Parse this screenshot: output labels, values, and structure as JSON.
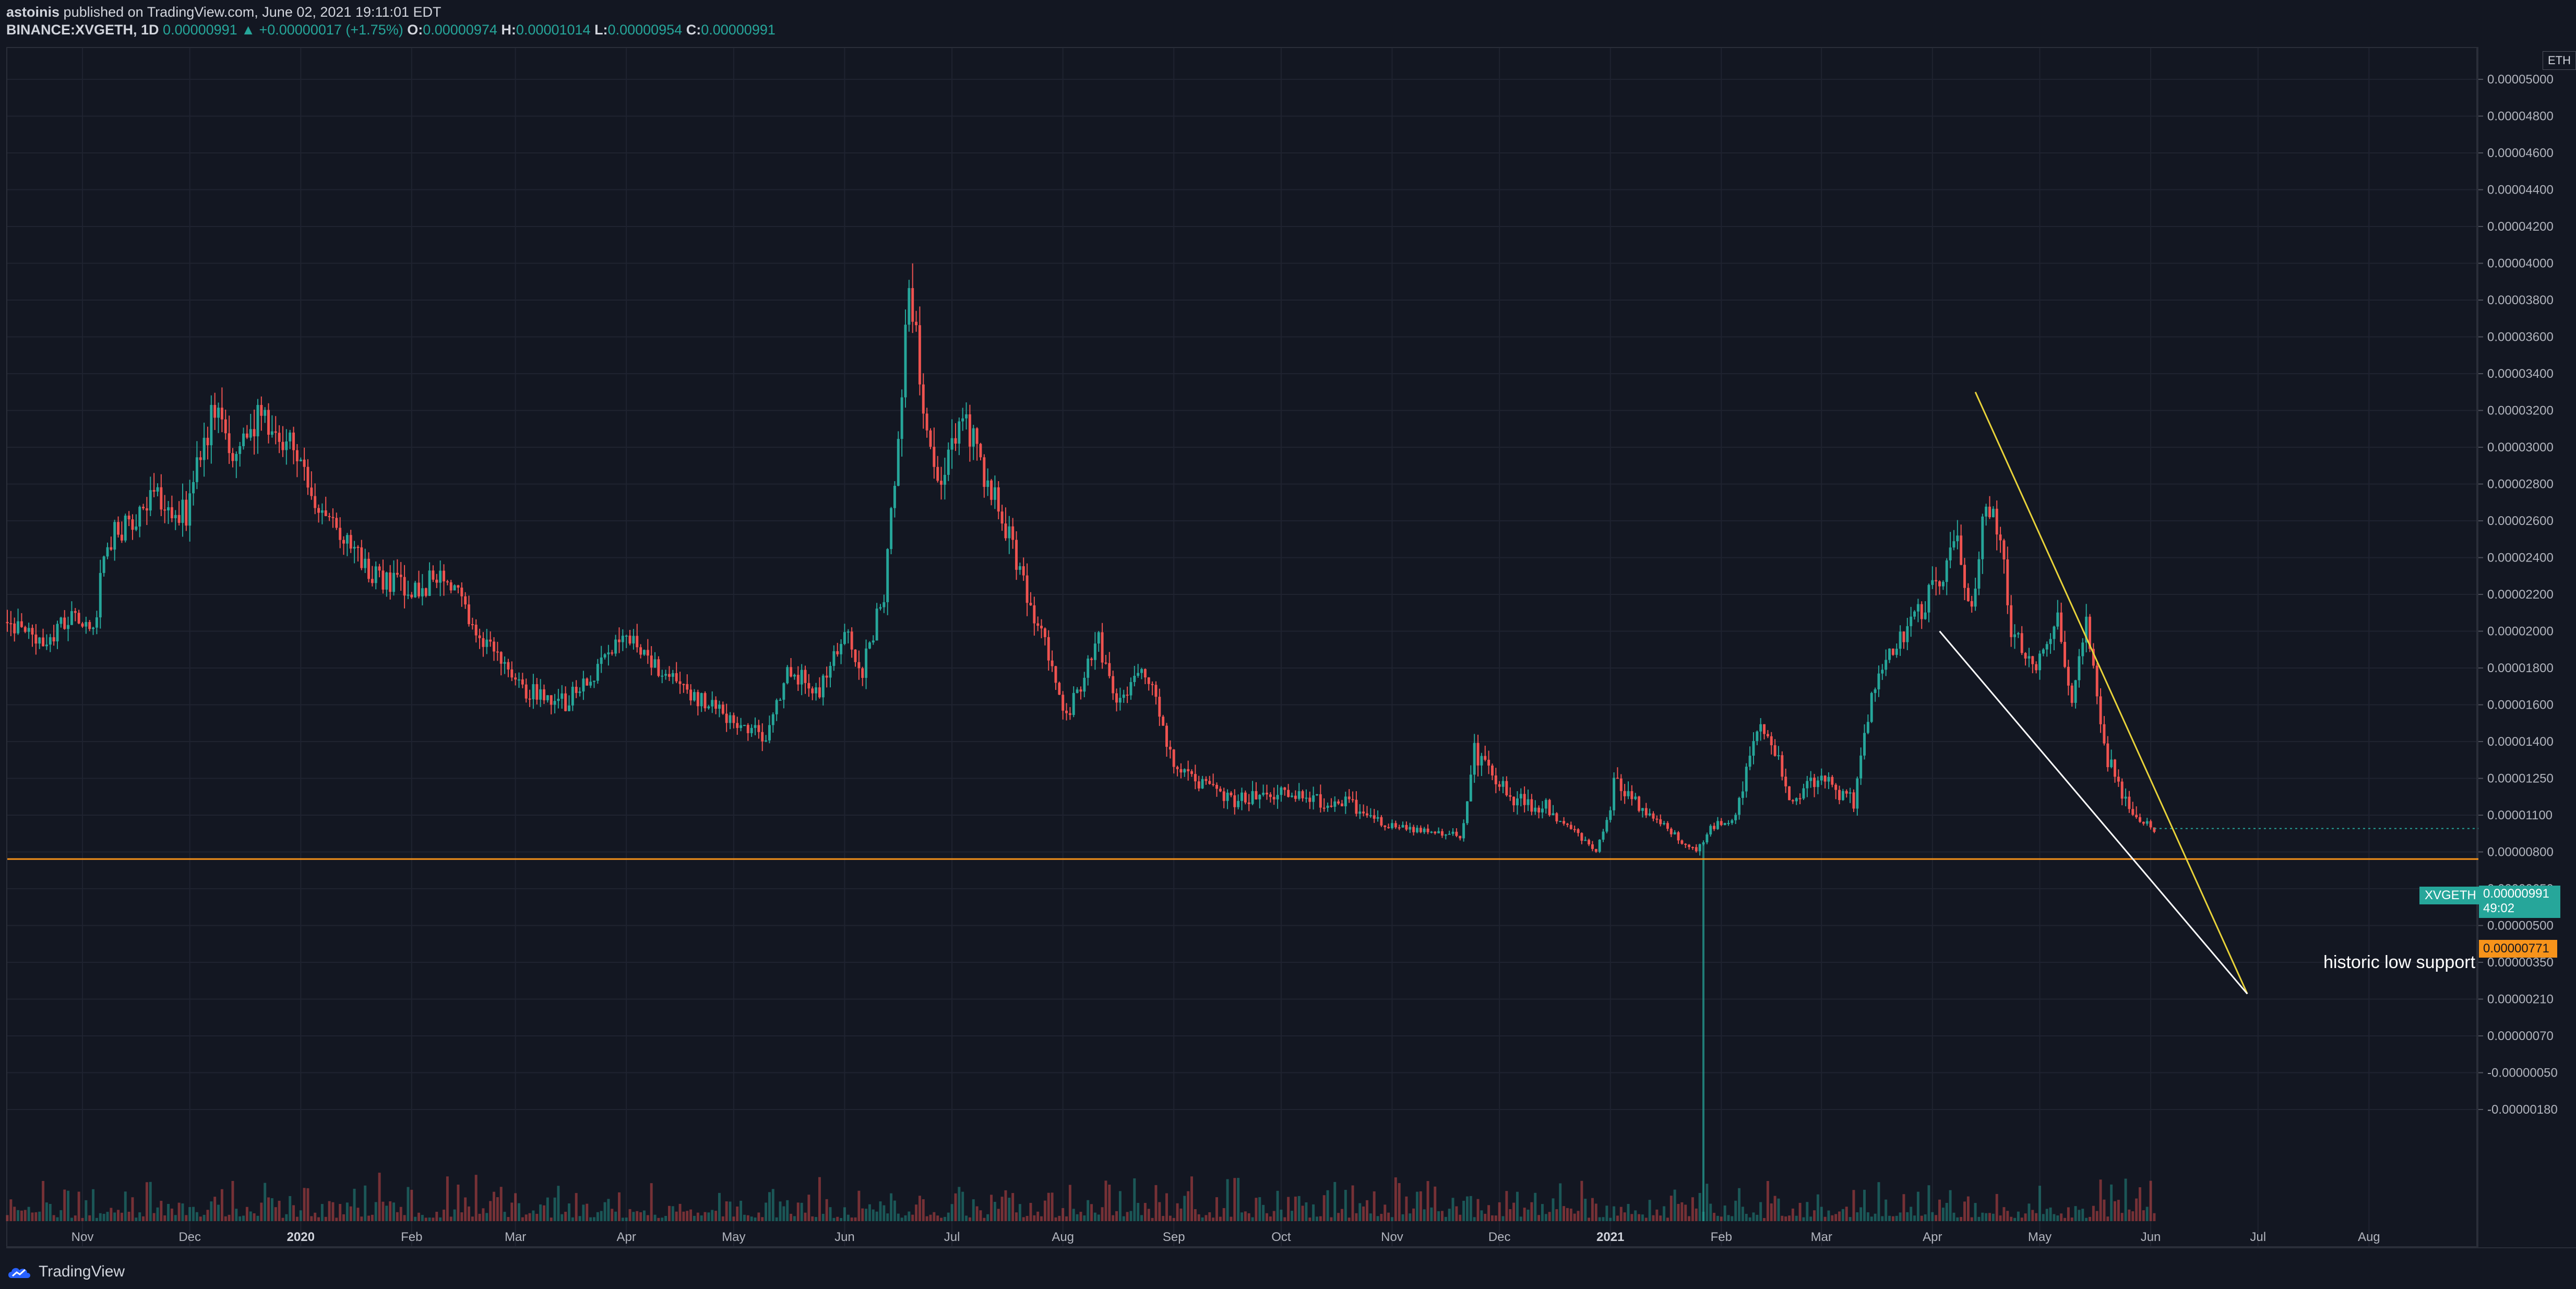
{
  "header": {
    "author": "astoinis",
    "published_text": "published on TradingView.com, June 02, 2021 19:11:01 EDT",
    "symbol": "BINANCE:XVGETH, 1D",
    "last": "0.00000991",
    "change": "+0.00000017 (+1.75%)",
    "o_label": "O:",
    "o_value": "0.00000974",
    "h_label": "H:",
    "h_value": "0.00001014",
    "l_label": "L:",
    "l_value": "0.00000954",
    "c_label": "C:",
    "c_value": "0.00000991"
  },
  "currency": "ETH",
  "price_tag": {
    "symbol": "XVGETH",
    "value": "0.00000991",
    "countdown": "49:02"
  },
  "support_tag": {
    "value": "0.00000771"
  },
  "annotation": "historic low support",
  "brand": "TradingView",
  "colors": {
    "up": "#26a69a",
    "down": "#ef5350",
    "support": "#f7931a",
    "trend_upper": "#e8d33a",
    "trend_lower": "#ffffff"
  },
  "chart_data": {
    "type": "candlestick",
    "y_tick_labels": [
      {
        "label": "0.00005000",
        "v": 5e-05
      },
      {
        "label": "0.00004800",
        "v": 4.8e-05
      },
      {
        "label": "0.00004600",
        "v": 4.6e-05
      },
      {
        "label": "0.00004400",
        "v": 4.4e-05
      },
      {
        "label": "0.00004200",
        "v": 4.2e-05
      },
      {
        "label": "0.00004000",
        "v": 4e-05
      },
      {
        "label": "0.00003800",
        "v": 3.8e-05
      },
      {
        "label": "0.00003600",
        "v": 3.6e-05
      },
      {
        "label": "0.00003400",
        "v": 3.4e-05
      },
      {
        "label": "0.00003200",
        "v": 3.2e-05
      },
      {
        "label": "0.00003000",
        "v": 3e-05
      },
      {
        "label": "0.00002800",
        "v": 2.8e-05
      },
      {
        "label": "0.00002600",
        "v": 2.6e-05
      },
      {
        "label": "0.00002400",
        "v": 2.4e-05
      },
      {
        "label": "0.00002200",
        "v": 2.2e-05
      },
      {
        "label": "0.00002000",
        "v": 2e-05
      },
      {
        "label": "0.00001800",
        "v": 1.8e-05
      },
      {
        "label": "0.00001600",
        "v": 1.6e-05
      },
      {
        "label": "0.00001400",
        "v": 1.4e-05
      },
      {
        "label": "0.00001250",
        "v": 1.25e-05
      },
      {
        "label": "0.00001100",
        "v": 1.1e-05
      },
      {
        "label": "0.00000800",
        "v": 8e-06
      },
      {
        "label": "0.00000650",
        "v": 6.5e-06
      },
      {
        "label": "0.00000500",
        "v": 5e-06
      },
      {
        "label": "0.00000350",
        "v": 3.5e-06
      },
      {
        "label": "0.00000210",
        "v": 2.1e-06
      },
      {
        "label": "0.00000070",
        "v": 7e-07
      },
      {
        "label": "-0.00000050",
        "v": -5e-07
      },
      {
        "label": "-0.00000180",
        "v": -1.8e-06
      }
    ],
    "x_tick_labels": [
      {
        "label": "Nov",
        "date": "2019-11-01",
        "year": false
      },
      {
        "label": "Dec",
        "date": "2019-12-01",
        "year": false
      },
      {
        "label": "2020",
        "date": "2020-01-01",
        "year": true
      },
      {
        "label": "Feb",
        "date": "2020-02-01",
        "year": false
      },
      {
        "label": "Mar",
        "date": "2020-03-01",
        "year": false
      },
      {
        "label": "Apr",
        "date": "2020-04-01",
        "year": false
      },
      {
        "label": "May",
        "date": "2020-05-01",
        "year": false
      },
      {
        "label": "Jun",
        "date": "2020-06-01",
        "year": false
      },
      {
        "label": "Jul",
        "date": "2020-07-01",
        "year": false
      },
      {
        "label": "Aug",
        "date": "2020-08-01",
        "year": false
      },
      {
        "label": "Sep",
        "date": "2020-09-01",
        "year": false
      },
      {
        "label": "Oct",
        "date": "2020-10-01",
        "year": false
      },
      {
        "label": "Nov",
        "date": "2020-11-01",
        "year": false
      },
      {
        "label": "Dec",
        "date": "2020-12-01",
        "year": false
      },
      {
        "label": "2021",
        "date": "2021-01-01",
        "year": true
      },
      {
        "label": "Feb",
        "date": "2021-02-01",
        "year": false
      },
      {
        "label": "Mar",
        "date": "2021-03-01",
        "year": false
      },
      {
        "label": "Apr",
        "date": "2021-04-01",
        "year": false
      },
      {
        "label": "May",
        "date": "2021-05-01",
        "year": false
      },
      {
        "label": "Jun",
        "date": "2021-06-01",
        "year": false
      },
      {
        "label": "Jul",
        "date": "2021-07-01",
        "year": false
      },
      {
        "label": "Aug",
        "date": "2021-08-01",
        "year": false
      }
    ],
    "x_range": [
      "2019-10-11",
      "2021-08-31"
    ],
    "last_bar_date": "2021-06-02",
    "close_path": [
      {
        "date": "2019-10-11",
        "close": 2.05e-05
      },
      {
        "date": "2019-10-20",
        "close": 1.93e-05
      },
      {
        "date": "2019-10-30",
        "close": 2.08e-05
      },
      {
        "date": "2019-11-04",
        "close": 1.97e-05
      },
      {
        "date": "2019-11-07",
        "close": 2.47e-05
      },
      {
        "date": "2019-11-12",
        "close": 2.56e-05
      },
      {
        "date": "2019-11-20",
        "close": 2.72e-05
      },
      {
        "date": "2019-11-30",
        "close": 2.65e-05
      },
      {
        "date": "2019-12-08",
        "close": 3.22e-05
      },
      {
        "date": "2019-12-14",
        "close": 2.92e-05
      },
      {
        "date": "2019-12-20",
        "close": 3.17e-05
      },
      {
        "date": "2019-12-31",
        "close": 2.96e-05
      },
      {
        "date": "2020-01-10",
        "close": 2.54e-05
      },
      {
        "date": "2020-01-20",
        "close": 2.33e-05
      },
      {
        "date": "2020-02-01",
        "close": 2.2e-05
      },
      {
        "date": "2020-02-10",
        "close": 2.33e-05
      },
      {
        "date": "2020-02-18",
        "close": 2.03e-05
      },
      {
        "date": "2020-03-01",
        "close": 1.7e-05
      },
      {
        "date": "2020-03-15",
        "close": 1.61e-05
      },
      {
        "date": "2020-04-01",
        "close": 1.96e-05
      },
      {
        "date": "2020-04-15",
        "close": 1.72e-05
      },
      {
        "date": "2020-05-01",
        "close": 1.5e-05
      },
      {
        "date": "2020-05-10",
        "close": 1.43e-05
      },
      {
        "date": "2020-05-16",
        "close": 1.79e-05
      },
      {
        "date": "2020-05-25",
        "close": 1.68e-05
      },
      {
        "date": "2020-06-01",
        "close": 1.99e-05
      },
      {
        "date": "2020-06-06",
        "close": 1.79e-05
      },
      {
        "date": "2020-06-12",
        "close": 2.21e-05
      },
      {
        "date": "2020-06-17",
        "close": 3.3e-05
      },
      {
        "date": "2020-06-19",
        "close": 3.92e-05
      },
      {
        "date": "2020-06-24",
        "close": 3.11e-05
      },
      {
        "date": "2020-06-28",
        "close": 2.78e-05
      },
      {
        "date": "2020-07-04",
        "close": 3.17e-05
      },
      {
        "date": "2020-07-15",
        "close": 2.62e-05
      },
      {
        "date": "2020-07-26",
        "close": 1.99e-05
      },
      {
        "date": "2020-08-02",
        "close": 1.54e-05
      },
      {
        "date": "2020-08-11",
        "close": 1.94e-05
      },
      {
        "date": "2020-08-16",
        "close": 1.63e-05
      },
      {
        "date": "2020-08-24",
        "close": 1.79e-05
      },
      {
        "date": "2020-09-01",
        "close": 1.29e-05
      },
      {
        "date": "2020-09-15",
        "close": 1.16e-05
      },
      {
        "date": "2020-10-01",
        "close": 1.18e-05
      },
      {
        "date": "2020-10-20",
        "close": 1.14e-05
      },
      {
        "date": "2020-11-01",
        "close": 1.01e-05
      },
      {
        "date": "2020-11-20",
        "close": 9.3e-06
      },
      {
        "date": "2020-11-24",
        "close": 1.36e-05
      },
      {
        "date": "2020-12-05",
        "close": 1.16e-05
      },
      {
        "date": "2020-12-15",
        "close": 1.13e-05
      },
      {
        "date": "2020-12-28",
        "close": 8.1e-06
      },
      {
        "date": "2021-01-02",
        "close": 1.24e-05
      },
      {
        "date": "2021-01-15",
        "close": 1.04e-05
      },
      {
        "date": "2021-01-25",
        "close": 7.9e-06
      },
      {
        "date": "2021-01-29",
        "close": 1e-05
      },
      {
        "date": "2021-02-05",
        "close": 1.09e-05
      },
      {
        "date": "2021-02-12",
        "close": 1.52e-05
      },
      {
        "date": "2021-02-20",
        "close": 1.18e-05
      },
      {
        "date": "2021-03-01",
        "close": 1.24e-05
      },
      {
        "date": "2021-03-10",
        "close": 1.16e-05
      },
      {
        "date": "2021-03-17",
        "close": 1.82e-05
      },
      {
        "date": "2021-03-25",
        "close": 1.99e-05
      },
      {
        "date": "2021-04-03",
        "close": 2.3e-05
      },
      {
        "date": "2021-04-08",
        "close": 2.48e-05
      },
      {
        "date": "2021-04-12",
        "close": 2.08e-05
      },
      {
        "date": "2021-04-16",
        "close": 2.72e-05
      },
      {
        "date": "2021-04-20",
        "close": 2.55e-05
      },
      {
        "date": "2021-04-23",
        "close": 2.01e-05
      },
      {
        "date": "2021-04-30",
        "close": 1.79e-05
      },
      {
        "date": "2021-05-06",
        "close": 2.06e-05
      },
      {
        "date": "2021-05-10",
        "close": 1.59e-05
      },
      {
        "date": "2021-05-14",
        "close": 2.08e-05
      },
      {
        "date": "2021-05-19",
        "close": 1.37e-05
      },
      {
        "date": "2021-05-25",
        "close": 1.15e-05
      },
      {
        "date": "2021-06-02",
        "close": 9.91e-06
      }
    ],
    "volume_spikes": [
      {
        "date": "2021-01-27",
        "value": -5e-07
      }
    ],
    "support_level": 7.71e-06,
    "last_price": 9.91e-06,
    "trendlines": [
      {
        "name": "upper",
        "from": {
          "date": "2021-04-13",
          "price": 3.3e-05
        },
        "to": {
          "date": "2021-06-28",
          "price": 2.3e-06
        }
      },
      {
        "name": "lower",
        "from": {
          "date": "2021-04-03",
          "price": 2e-05
        },
        "to": {
          "date": "2021-06-28",
          "price": 2.3e-06
        }
      }
    ]
  }
}
